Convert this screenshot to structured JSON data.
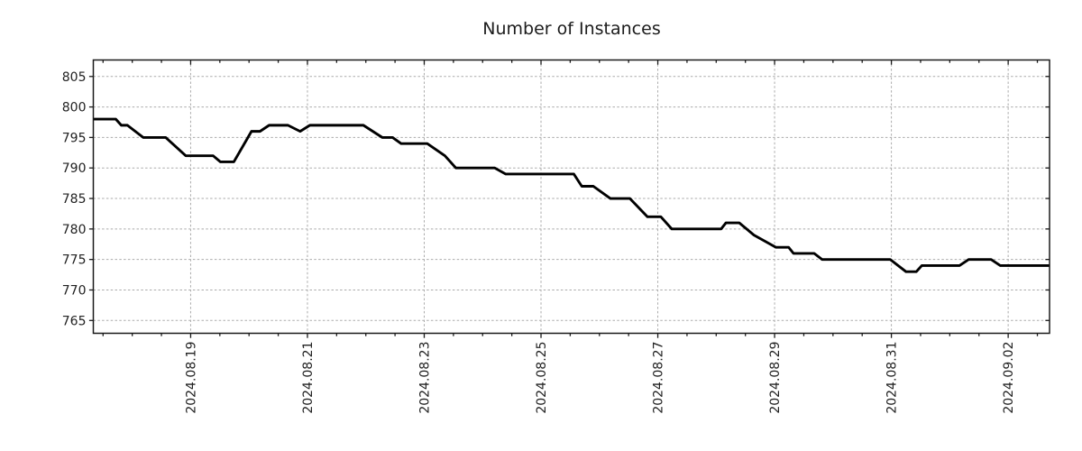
{
  "chart_data": {
    "type": "line",
    "title": "Number of Instances",
    "xlabel": "",
    "ylabel": "",
    "legend": "none",
    "grid": "dotted-major-both-axes",
    "x_range": [
      "2024-08-17 08:00",
      "2024-09-02 17:00"
    ],
    "y_range": [
      762.9,
      807.7
    ],
    "y_ticks": [
      765,
      770,
      775,
      780,
      785,
      790,
      795,
      800,
      805
    ],
    "x_ticks": [
      {
        "t": "2024-08-19 00:00",
        "label": "2024.08.19"
      },
      {
        "t": "2024-08-21 00:00",
        "label": "2024.08.21"
      },
      {
        "t": "2024-08-23 00:00",
        "label": "2024.08.23"
      },
      {
        "t": "2024-08-25 00:00",
        "label": "2024.08.25"
      },
      {
        "t": "2024-08-27 00:00",
        "label": "2024.08.27"
      },
      {
        "t": "2024-08-29 00:00",
        "label": "2024.08.29"
      },
      {
        "t": "2024-08-31 00:00",
        "label": "2024.08.31"
      },
      {
        "t": "2024-09-02 00:00",
        "label": "2024.09.02"
      }
    ],
    "x_minor_tick_hours": 12,
    "colors": {
      "line": "#000000",
      "grid": "#ababab",
      "frame": "#1a1a1a",
      "text": "#222222"
    },
    "series": [
      {
        "name": "instances",
        "points": [
          [
            "2024-08-17 08:00",
            798
          ],
          [
            "2024-08-17 17:15",
            798
          ],
          [
            "2024-08-17 19:30",
            797
          ],
          [
            "2024-08-17 22:00",
            797
          ],
          [
            "2024-08-18 04:30",
            795
          ],
          [
            "2024-08-18 13:45",
            795
          ],
          [
            "2024-08-18 22:00",
            792
          ],
          [
            "2024-08-19 09:15",
            792
          ],
          [
            "2024-08-19 12:15",
            791
          ],
          [
            "2024-08-19 17:45",
            791
          ],
          [
            "2024-08-20 01:00",
            796
          ],
          [
            "2024-08-20 04:30",
            796
          ],
          [
            "2024-08-20 08:15",
            797
          ],
          [
            "2024-08-20 16:00",
            797
          ],
          [
            "2024-08-20 21:00",
            796
          ],
          [
            "2024-08-21 01:00",
            797
          ],
          [
            "2024-08-21 23:00",
            797
          ],
          [
            "2024-08-22 06:45",
            795
          ],
          [
            "2024-08-22 11:00",
            795
          ],
          [
            "2024-08-22 14:30",
            794
          ],
          [
            "2024-08-23 01:15",
            794
          ],
          [
            "2024-08-23 08:30",
            792
          ],
          [
            "2024-08-23 13:00",
            790
          ],
          [
            "2024-08-24 05:00",
            790
          ],
          [
            "2024-08-24 09:30",
            789
          ],
          [
            "2024-08-25 13:30",
            789
          ],
          [
            "2024-08-25 16:45",
            787
          ],
          [
            "2024-08-25 21:30",
            787
          ],
          [
            "2024-08-26 04:30",
            785
          ],
          [
            "2024-08-26 12:30",
            785
          ],
          [
            "2024-08-26 19:45",
            782
          ],
          [
            "2024-08-27 01:15",
            782
          ],
          [
            "2024-08-27 05:45",
            780
          ],
          [
            "2024-08-28 02:00",
            780
          ],
          [
            "2024-08-28 04:00",
            781
          ],
          [
            "2024-08-28 09:30",
            781
          ],
          [
            "2024-08-28 15:30",
            779
          ],
          [
            "2024-08-29 00:30",
            777
          ],
          [
            "2024-08-29 05:45",
            777
          ],
          [
            "2024-08-29 07:45",
            776
          ],
          [
            "2024-08-29 16:15",
            776
          ],
          [
            "2024-08-29 19:30",
            775
          ],
          [
            "2024-08-30 23:30",
            775
          ],
          [
            "2024-08-31 06:00",
            773
          ],
          [
            "2024-08-31 10:15",
            773
          ],
          [
            "2024-08-31 12:30",
            774
          ],
          [
            "2024-09-01 04:00",
            774
          ],
          [
            "2024-09-01 07:45",
            775
          ],
          [
            "2024-09-01 17:00",
            775
          ],
          [
            "2024-09-01 20:45",
            774
          ],
          [
            "2024-09-02 17:00",
            774
          ]
        ]
      }
    ]
  }
}
